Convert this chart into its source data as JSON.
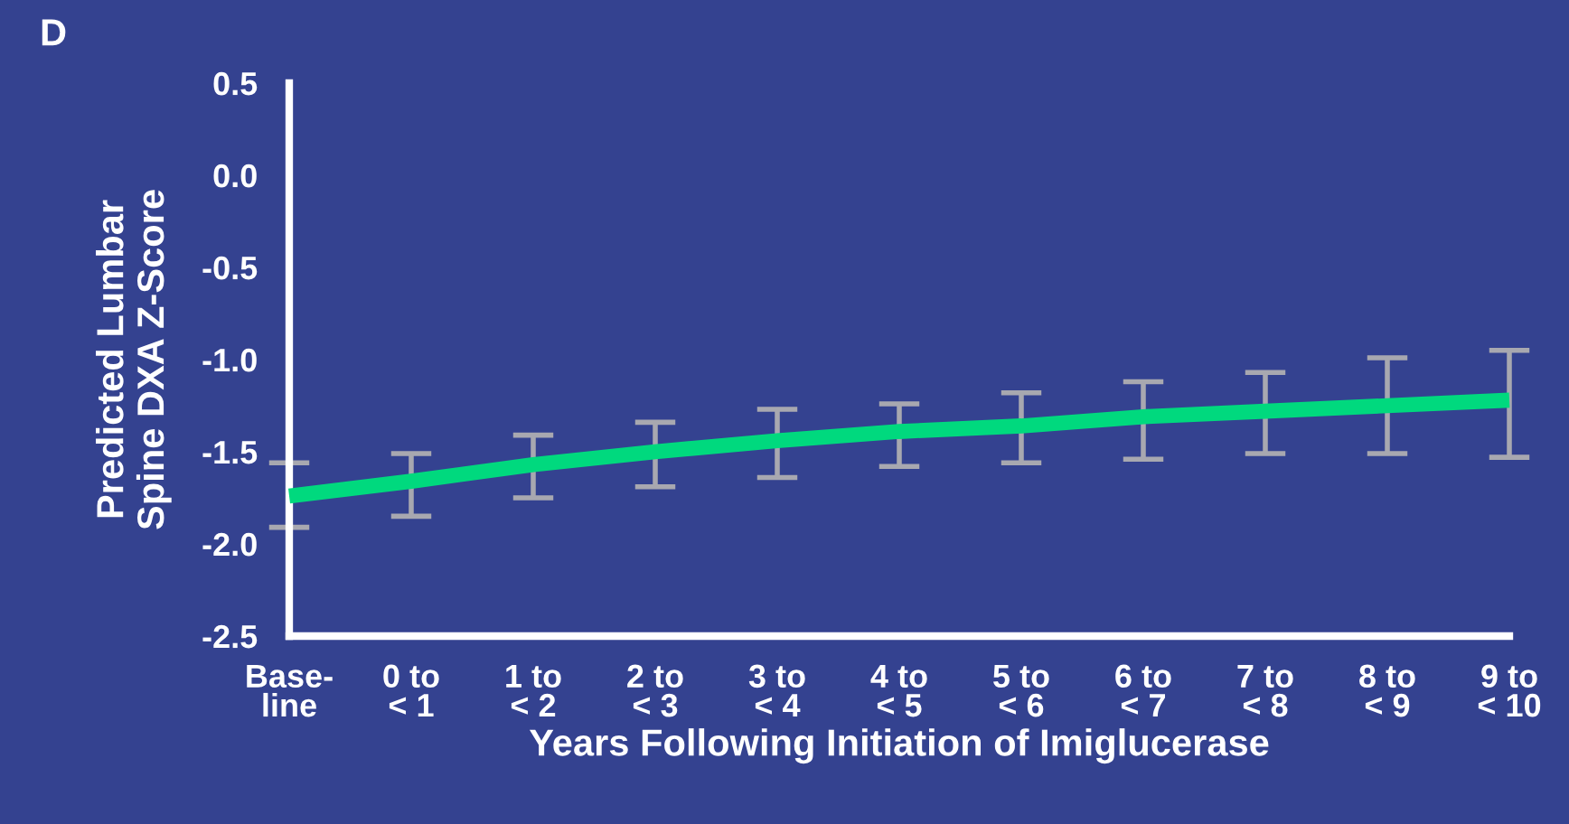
{
  "chart_data": {
    "type": "line",
    "xlabel": "Years Following Initiation of Imiglucerase",
    "ylabel": "Predicted Lumbar\nSpine DXA Z-Score",
    "annotations": [
      "D"
    ],
    "categories": [
      "Base-\nline",
      "0 to\n< 1",
      "1 to\n< 2",
      "2 to\n< 3",
      "3 to\n< 4",
      "4 to\n< 5",
      "5 to\n< 6",
      "6 to\n< 7",
      "7 to\n< 8",
      "8 to\n< 9",
      "9 to\n< 10"
    ],
    "series": [
      {
        "color": "#00d97e",
        "values": [
          -1.74,
          -1.66,
          -1.57,
          -1.5,
          -1.44,
          -1.39,
          -1.36,
          -1.31,
          -1.28,
          -1.25,
          -1.22
        ],
        "errors": [
          [
            -1.91,
            -1.56
          ],
          [
            -1.85,
            -1.51
          ],
          [
            -1.75,
            -1.41
          ],
          [
            -1.69,
            -1.34
          ],
          [
            -1.64,
            -1.27
          ],
          [
            -1.58,
            -1.24
          ],
          [
            -1.56,
            -1.18
          ],
          [
            -1.54,
            -1.12
          ],
          [
            -1.51,
            -1.07
          ],
          [
            -1.51,
            -0.99
          ],
          [
            -1.53,
            -0.95
          ]
        ]
      }
    ],
    "ylim": [
      -2.5,
      0.5
    ],
    "yticks": [
      {
        "value": 0.5,
        "label": "0.5"
      },
      {
        "value": 0.0,
        "label": "0.0"
      },
      {
        "value": -0.5,
        "label": "-0.5"
      },
      {
        "value": -1.0,
        "label": "-1.0"
      },
      {
        "value": -1.5,
        "label": "-1.5"
      },
      {
        "value": -2.0,
        "label": "-2.0"
      },
      {
        "value": -2.5,
        "label": "-2.5"
      }
    ],
    "grid": false,
    "legend": false,
    "marker": "none",
    "line_style": "solid"
  }
}
